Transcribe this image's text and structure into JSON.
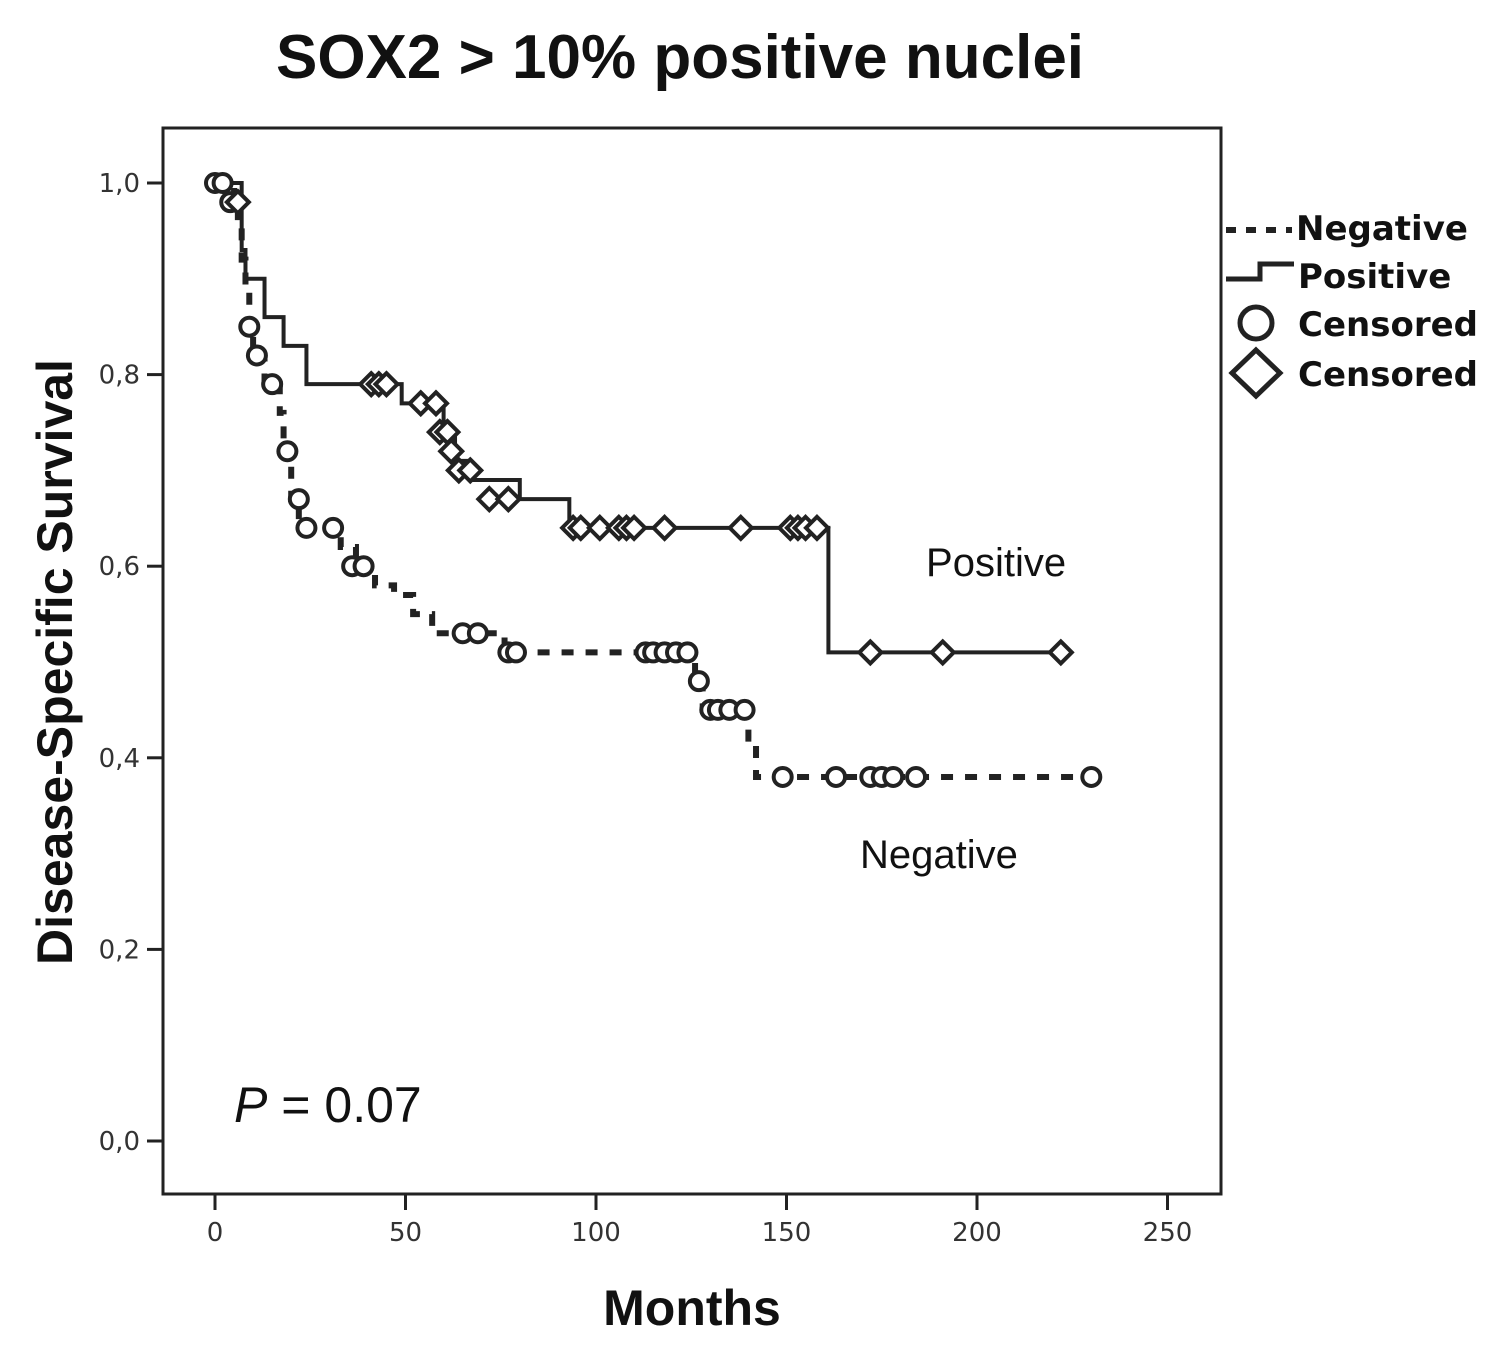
{
  "chart_data": {
    "type": "line",
    "subtype": "kaplan-meier",
    "title": "SOX2 > 10% positive nuclei",
    "xlabel": "Months",
    "ylabel": "Disease-Specific Survival",
    "xlim": [
      0,
      250
    ],
    "ylim": [
      0,
      1
    ],
    "x_ticks": [
      0,
      50,
      100,
      150,
      200,
      250
    ],
    "x_tick_labels": [
      "0",
      "50",
      "100",
      "150",
      "200",
      "250"
    ],
    "y_ticks": [
      0,
      0.2,
      0.4,
      0.6,
      0.8,
      1.0
    ],
    "y_tick_labels": [
      "0,0",
      "0,2",
      "0,4",
      "0,6",
      "0,8",
      "1,0"
    ],
    "grid": false,
    "legend_position": "outside-right",
    "legend": [
      {
        "label": "Negative",
        "kind": "dashed-line"
      },
      {
        "label": "Positive",
        "kind": "solid-line"
      },
      {
        "label": "Censored",
        "kind": "circle"
      },
      {
        "label": "Censored",
        "kind": "diamond"
      }
    ],
    "series": [
      {
        "name": "Negative",
        "style": "dashed",
        "censor_marker": "circle",
        "steps": [
          [
            0,
            1.0
          ],
          [
            5,
            0.98
          ],
          [
            6,
            0.96
          ],
          [
            7,
            0.92
          ],
          [
            8,
            0.89
          ],
          [
            9,
            0.85
          ],
          [
            10,
            0.82
          ],
          [
            13,
            0.79
          ],
          [
            17,
            0.76
          ],
          [
            18,
            0.72
          ],
          [
            20,
            0.67
          ],
          [
            22,
            0.64
          ],
          [
            33,
            0.62
          ],
          [
            37,
            0.6
          ],
          [
            42,
            0.58
          ],
          [
            47,
            0.57
          ],
          [
            52,
            0.55
          ],
          [
            57,
            0.53
          ],
          [
            76,
            0.51
          ],
          [
            126,
            0.48
          ],
          [
            128,
            0.45
          ],
          [
            140,
            0.42
          ],
          [
            142,
            0.38
          ],
          [
            230,
            0.38
          ]
        ],
        "censored": [
          [
            0,
            1.0
          ],
          [
            2,
            1.0
          ],
          [
            4,
            0.98
          ],
          [
            9,
            0.85
          ],
          [
            11,
            0.82
          ],
          [
            15,
            0.79
          ],
          [
            19,
            0.72
          ],
          [
            22,
            0.67
          ],
          [
            24,
            0.64
          ],
          [
            31,
            0.64
          ],
          [
            36,
            0.6
          ],
          [
            39,
            0.6
          ],
          [
            65,
            0.53
          ],
          [
            69,
            0.53
          ],
          [
            77,
            0.51
          ],
          [
            79,
            0.51
          ],
          [
            113,
            0.51
          ],
          [
            115,
            0.51
          ],
          [
            118,
            0.51
          ],
          [
            121,
            0.51
          ],
          [
            124,
            0.51
          ],
          [
            127,
            0.48
          ],
          [
            130,
            0.45
          ],
          [
            132,
            0.45
          ],
          [
            135,
            0.45
          ],
          [
            139,
            0.45
          ],
          [
            149,
            0.38
          ],
          [
            163,
            0.38
          ],
          [
            172,
            0.38
          ],
          [
            175,
            0.38
          ],
          [
            178,
            0.38
          ],
          [
            184,
            0.38
          ],
          [
            230,
            0.38
          ]
        ]
      },
      {
        "name": "Positive",
        "style": "solid",
        "censor_marker": "diamond",
        "steps": [
          [
            0,
            1.0
          ],
          [
            7,
            0.93
          ],
          [
            8,
            0.9
          ],
          [
            13,
            0.86
          ],
          [
            18,
            0.83
          ],
          [
            24,
            0.79
          ],
          [
            49,
            0.77
          ],
          [
            60,
            0.74
          ],
          [
            63,
            0.71
          ],
          [
            67,
            0.69
          ],
          [
            80,
            0.67
          ],
          [
            93,
            0.64
          ],
          [
            161,
            0.51
          ],
          [
            222,
            0.51
          ]
        ],
        "censored": [
          [
            6,
            0.98
          ],
          [
            41,
            0.79
          ],
          [
            43,
            0.79
          ],
          [
            45,
            0.79
          ],
          [
            54,
            0.77
          ],
          [
            58,
            0.77
          ],
          [
            59,
            0.74
          ],
          [
            61,
            0.74
          ],
          [
            62,
            0.72
          ],
          [
            64,
            0.7
          ],
          [
            67,
            0.7
          ],
          [
            72,
            0.67
          ],
          [
            77,
            0.67
          ],
          [
            94,
            0.64
          ],
          [
            96,
            0.64
          ],
          [
            101,
            0.64
          ],
          [
            106,
            0.64
          ],
          [
            108,
            0.64
          ],
          [
            110,
            0.64
          ],
          [
            118,
            0.64
          ],
          [
            138,
            0.64
          ],
          [
            151,
            0.64
          ],
          [
            153,
            0.64
          ],
          [
            155,
            0.64
          ],
          [
            158,
            0.64
          ],
          [
            172,
            0.51
          ],
          [
            191,
            0.51
          ],
          [
            222,
            0.51
          ]
        ]
      }
    ],
    "annotations": [
      {
        "text": "Positive",
        "x": 205,
        "y": 0.59
      },
      {
        "text": "Negative",
        "x": 190,
        "y": 0.285
      }
    ],
    "p_value": {
      "prefix": "P",
      "text": " = 0.07",
      "x": 5,
      "y": 0.02
    }
  }
}
